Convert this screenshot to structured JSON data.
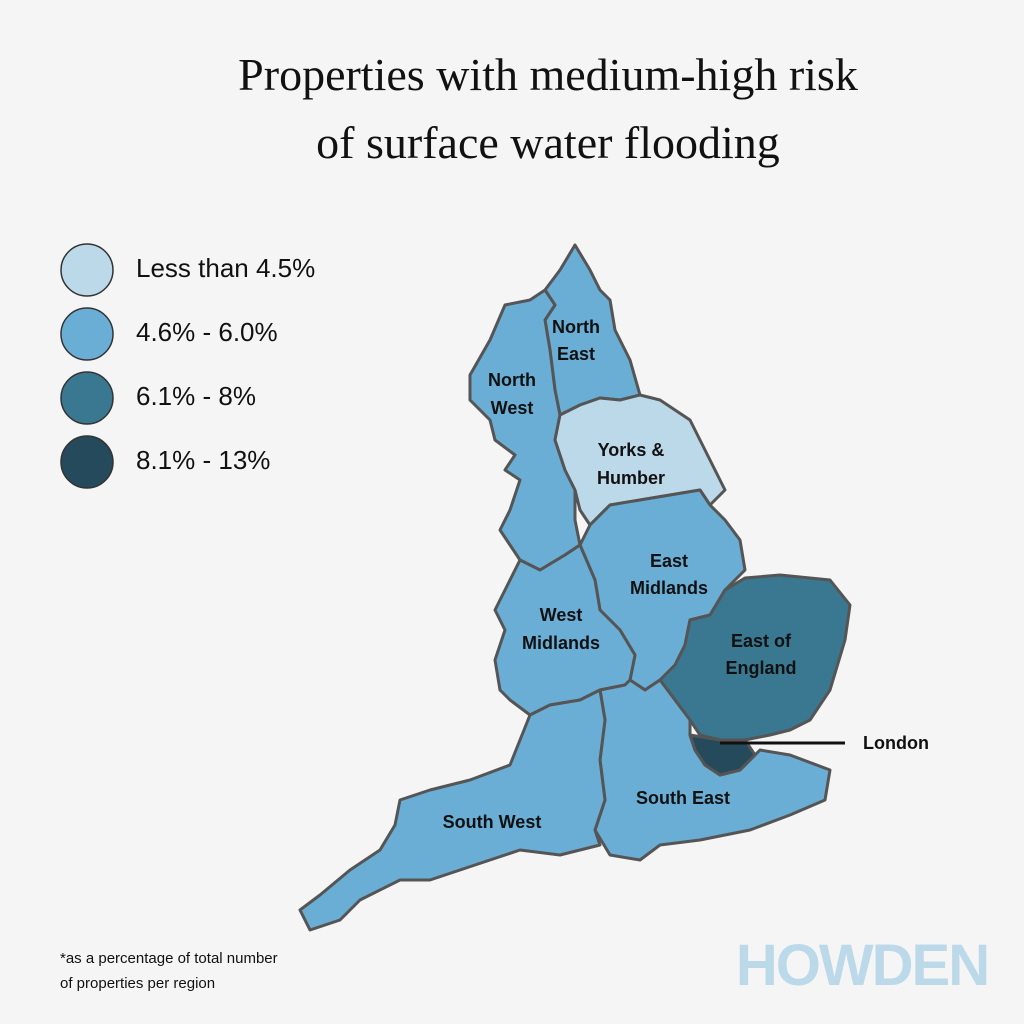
{
  "title": [
    "Properties with medium-high risk",
    "of surface water flooding"
  ],
  "legend": [
    {
      "label": "Less than 4.5%",
      "color": "#bcd9ea"
    },
    {
      "label": "4.6% - 6.0%",
      "color": "#6aaed6"
    },
    {
      "label": "6.1% - 8%",
      "color": "#3a7891"
    },
    {
      "label": "8.1% - 13%",
      "color": "#254a5c"
    }
  ],
  "regions": [
    {
      "label": [
        "North",
        "East"
      ],
      "band": 1
    },
    {
      "label": [
        "North",
        "West"
      ],
      "band": 1
    },
    {
      "label": [
        "Yorks &",
        "Humber"
      ],
      "band": 0
    },
    {
      "label": [
        "East",
        "Midlands"
      ],
      "band": 1
    },
    {
      "label": [
        "West",
        "Midlands"
      ],
      "band": 1
    },
    {
      "label": [
        "East of",
        "England"
      ],
      "band": 2
    },
    {
      "label": [
        "London"
      ],
      "band": 3
    },
    {
      "label": [
        "South East"
      ],
      "band": 1
    },
    {
      "label": [
        "South West"
      ],
      "band": 1
    }
  ],
  "footnote": [
    "*as a percentage of total number",
    "of properties per region"
  ],
  "logo": "HOWDEN"
}
